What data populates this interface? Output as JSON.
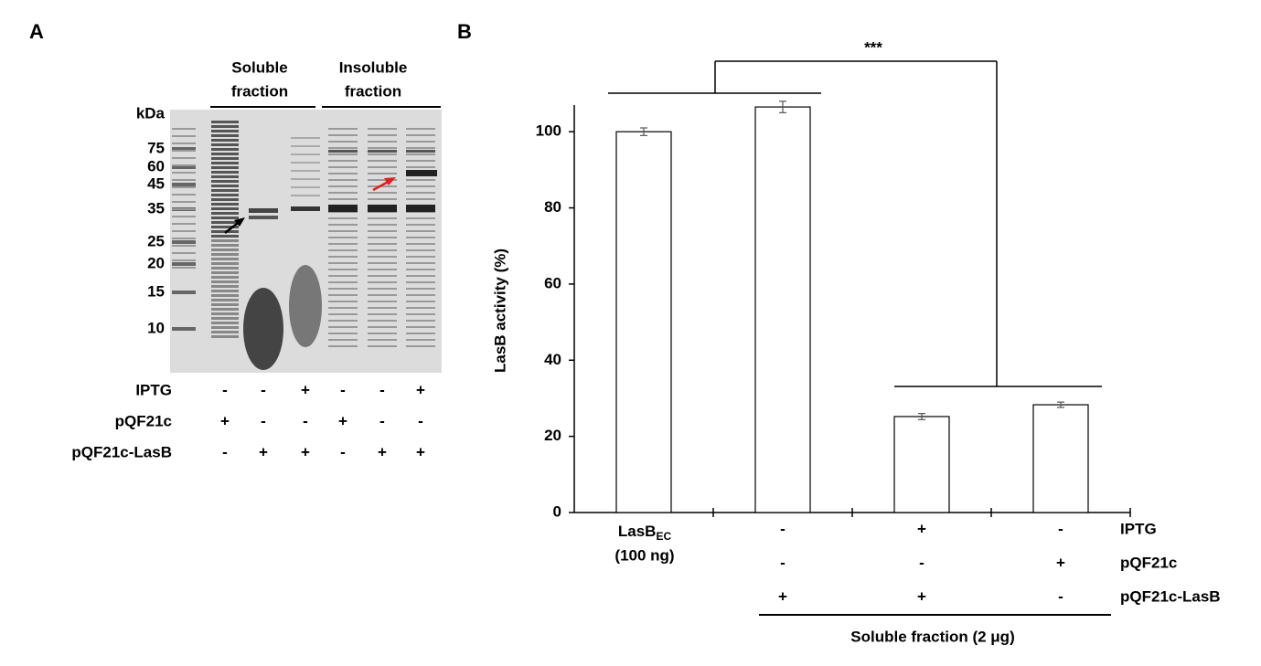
{
  "panel_a": {
    "label": "A",
    "unit": "kDa",
    "markers": [
      75,
      60,
      45,
      35,
      25,
      20,
      15,
      10
    ],
    "groups": [
      [
        "Soluble",
        "fraction"
      ],
      [
        "Insoluble",
        "fraction"
      ]
    ],
    "rows": [
      {
        "name": "IPTG",
        "signs": [
          "-",
          "-",
          "+",
          "-",
          "-",
          "+"
        ]
      },
      {
        "name": "pQF21c",
        "signs": [
          "+",
          "-",
          "-",
          "+",
          "-",
          "-"
        ]
      },
      {
        "name": "pQF21c-LasB",
        "signs": [
          "-",
          "+",
          "+",
          "-",
          "+",
          "+"
        ]
      }
    ]
  },
  "chart_data": {
    "type": "bar",
    "panel_label": "B",
    "ylabel": "LasB activity (%)",
    "categories": [
      null,
      null,
      null,
      null
    ],
    "reference_label": {
      "name": "LasB",
      "subscript": "EC",
      "amount": "(100 ng)"
    },
    "values": [
      100,
      106.5,
      25.2,
      28.3
    ],
    "errors": [
      1,
      1.5,
      0.8,
      0.7
    ],
    "color": "#ffffff",
    "edge_color": "#000000",
    "ylim": [
      0,
      107
    ],
    "yticks": [
      0,
      20,
      40,
      60,
      80,
      100
    ],
    "conditions": [
      {
        "name": "IPTG",
        "signs": [
          null,
          "-",
          "+",
          "-"
        ]
      },
      {
        "name": "pQF21c",
        "signs": [
          null,
          "-",
          "-",
          "+"
        ]
      },
      {
        "name": "pQF21c-LasB",
        "signs": [
          null,
          "+",
          "+",
          "-"
        ]
      }
    ],
    "group_label": "Soluble fraction (2 μg)",
    "significance": "***"
  }
}
